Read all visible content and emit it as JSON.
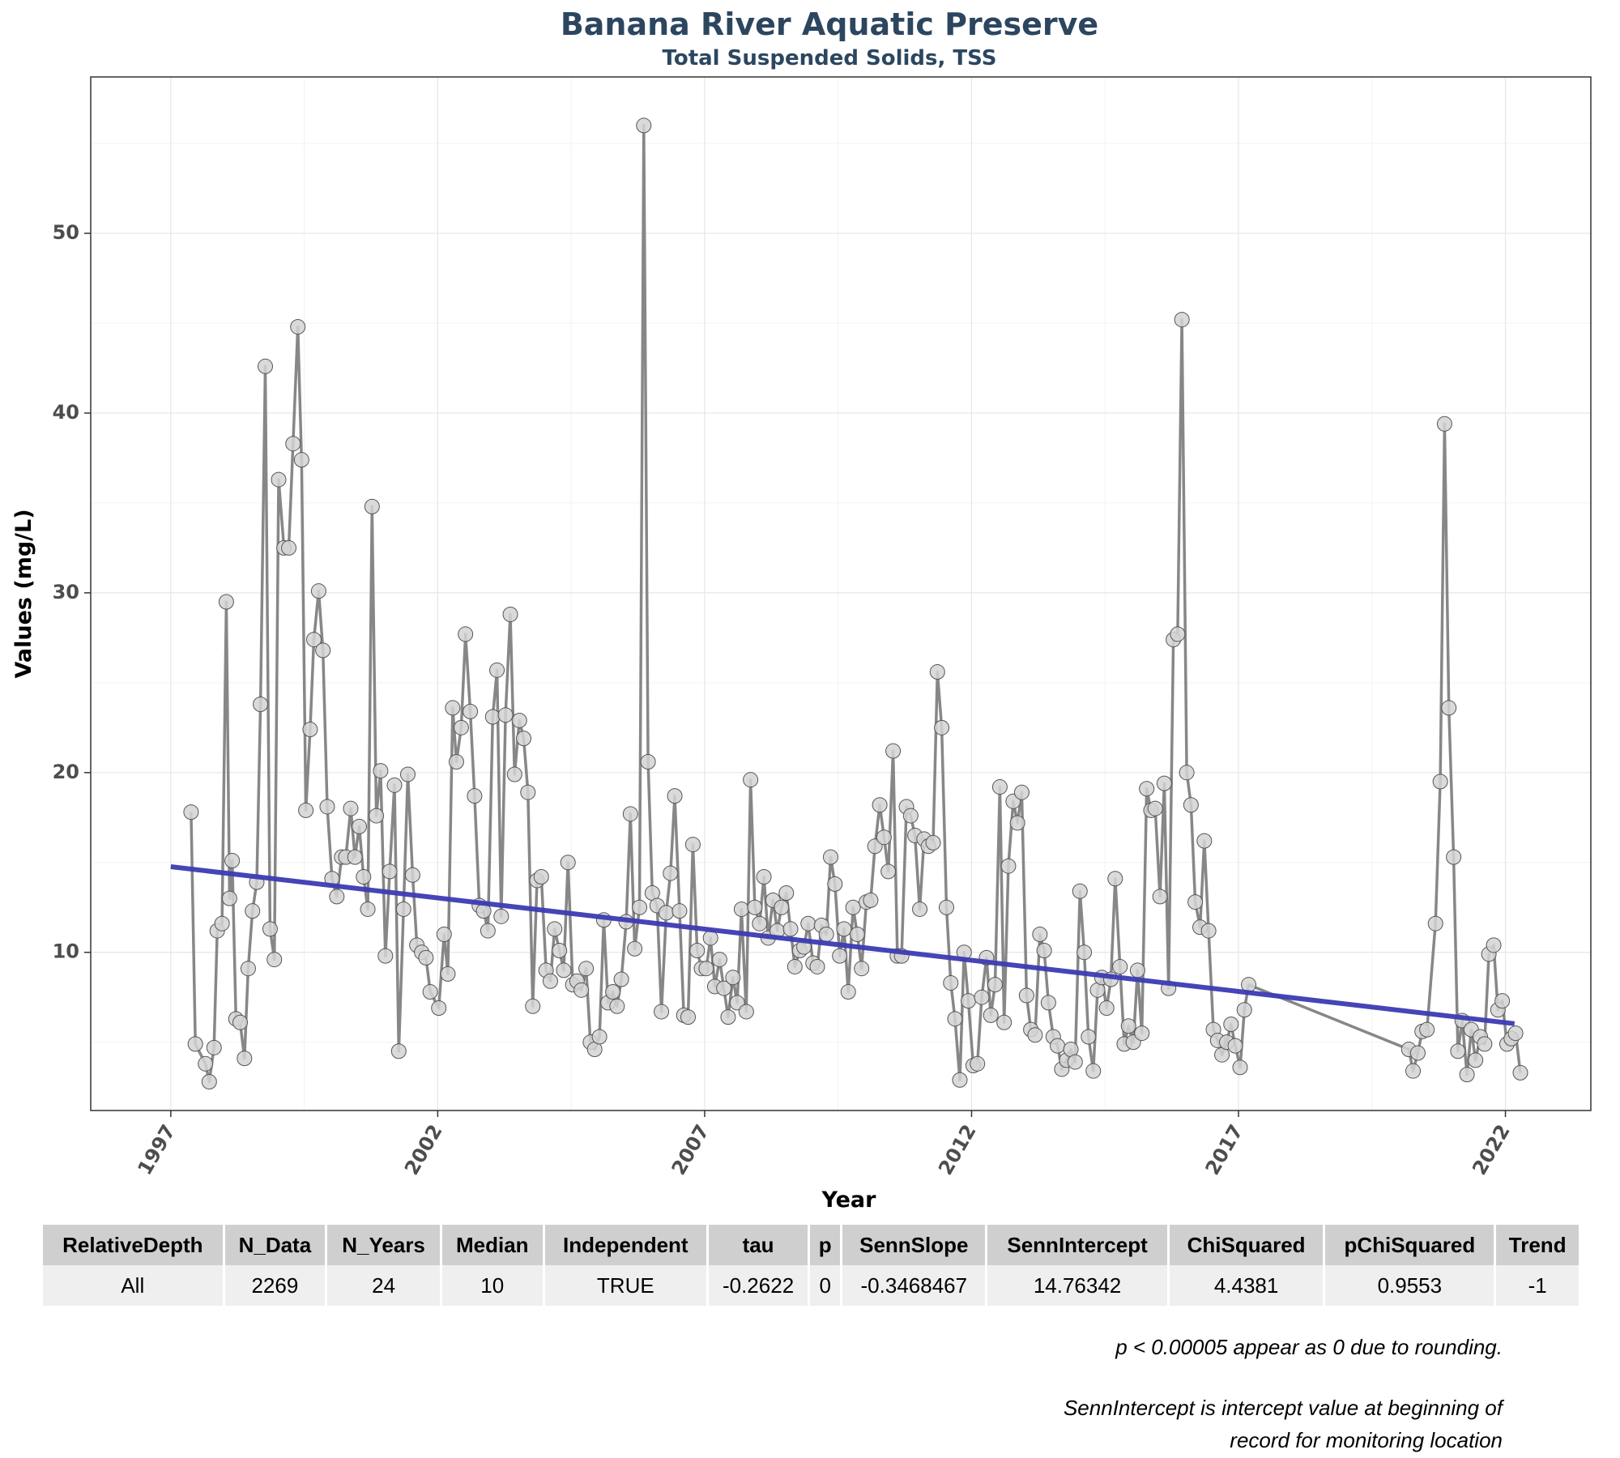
{
  "chart_data": {
    "type": "line",
    "title": "Banana River Aquatic Preserve",
    "subtitle": "Total Suspended Solids, TSS",
    "xlabel": "Year",
    "ylabel": "Values (mg/L)",
    "xlim": [
      1995.5,
      2023.6
    ],
    "ylim": [
      1.2,
      58.7
    ],
    "x_ticks": [
      1997,
      2002,
      2007,
      2012,
      2017,
      2022
    ],
    "y_ticks": [
      10,
      20,
      30,
      40,
      50
    ],
    "grid": true,
    "series": [
      {
        "points": [
          [
            1997.38,
            17.8
          ],
          [
            1997.46,
            4.9
          ],
          [
            1997.65,
            3.8
          ],
          [
            1997.72,
            2.8
          ],
          [
            1997.81,
            4.7
          ],
          [
            1997.87,
            11.2
          ],
          [
            1997.96,
            11.6
          ],
          [
            1998.04,
            29.5
          ],
          [
            1998.1,
            13.0
          ],
          [
            1998.15,
            15.1
          ],
          [
            1998.22,
            6.3
          ],
          [
            1998.3,
            6.1
          ],
          [
            1998.38,
            4.1
          ],
          [
            1998.45,
            9.1
          ],
          [
            1998.53,
            12.3
          ],
          [
            1998.61,
            13.9
          ],
          [
            1998.68,
            23.8
          ],
          [
            1998.77,
            42.6
          ],
          [
            1998.86,
            11.3
          ],
          [
            1998.94,
            9.6
          ],
          [
            1999.02,
            36.3
          ],
          [
            1999.12,
            32.5
          ],
          [
            1999.21,
            32.5
          ],
          [
            1999.29,
            38.3
          ],
          [
            1999.38,
            44.8
          ],
          [
            1999.45,
            37.4
          ],
          [
            1999.53,
            17.9
          ],
          [
            1999.61,
            22.4
          ],
          [
            1999.68,
            27.4
          ],
          [
            1999.77,
            30.1
          ],
          [
            1999.85,
            26.8
          ],
          [
            1999.93,
            18.1
          ],
          [
            2000.02,
            14.1
          ],
          [
            2000.11,
            13.1
          ],
          [
            2000.2,
            15.3
          ],
          [
            2000.28,
            15.3
          ],
          [
            2000.37,
            18.0
          ],
          [
            2000.45,
            15.3
          ],
          [
            2000.53,
            17.0
          ],
          [
            2000.61,
            14.2
          ],
          [
            2000.69,
            12.4
          ],
          [
            2000.77,
            34.8
          ],
          [
            2000.85,
            17.6
          ],
          [
            2000.93,
            20.1
          ],
          [
            2001.02,
            9.8
          ],
          [
            2001.1,
            14.5
          ],
          [
            2001.19,
            19.3
          ],
          [
            2001.27,
            4.5
          ],
          [
            2001.36,
            12.4
          ],
          [
            2001.44,
            19.9
          ],
          [
            2001.53,
            14.3
          ],
          [
            2001.61,
            10.4
          ],
          [
            2001.7,
            10.0
          ],
          [
            2001.78,
            9.7
          ],
          [
            2001.86,
            7.8
          ],
          [
            2002.02,
            6.9
          ],
          [
            2002.12,
            11.0
          ],
          [
            2002.19,
            8.8
          ],
          [
            2002.28,
            23.6
          ],
          [
            2002.35,
            20.6
          ],
          [
            2002.44,
            22.5
          ],
          [
            2002.52,
            27.7
          ],
          [
            2002.61,
            23.4
          ],
          [
            2002.69,
            18.7
          ],
          [
            2002.78,
            12.6
          ],
          [
            2002.86,
            12.3
          ],
          [
            2002.94,
            11.2
          ],
          [
            2003.03,
            23.1
          ],
          [
            2003.11,
            25.7
          ],
          [
            2003.19,
            12.0
          ],
          [
            2003.27,
            23.2
          ],
          [
            2003.36,
            28.8
          ],
          [
            2003.44,
            19.9
          ],
          [
            2003.53,
            22.9
          ],
          [
            2003.61,
            21.9
          ],
          [
            2003.69,
            18.9
          ],
          [
            2003.78,
            7.0
          ],
          [
            2003.86,
            14.0
          ],
          [
            2003.94,
            14.2
          ],
          [
            2004.03,
            9.0
          ],
          [
            2004.11,
            8.4
          ],
          [
            2004.19,
            11.3
          ],
          [
            2004.28,
            10.1
          ],
          [
            2004.36,
            9.0
          ],
          [
            2004.44,
            15.0
          ],
          [
            2004.53,
            8.2
          ],
          [
            2004.61,
            8.4
          ],
          [
            2004.69,
            7.9
          ],
          [
            2004.78,
            9.1
          ],
          [
            2004.86,
            5.0
          ],
          [
            2004.94,
            4.6
          ],
          [
            2005.03,
            5.3
          ],
          [
            2005.11,
            11.8
          ],
          [
            2005.19,
            7.2
          ],
          [
            2005.28,
            7.8
          ],
          [
            2005.36,
            7.0
          ],
          [
            2005.44,
            8.5
          ],
          [
            2005.53,
            11.7
          ],
          [
            2005.61,
            17.7
          ],
          [
            2005.69,
            10.2
          ],
          [
            2005.78,
            12.5
          ],
          [
            2005.86,
            56.0
          ],
          [
            2005.94,
            20.6
          ],
          [
            2006.02,
            13.3
          ],
          [
            2006.11,
            12.6
          ],
          [
            2006.19,
            6.7
          ],
          [
            2006.28,
            12.2
          ],
          [
            2006.36,
            14.4
          ],
          [
            2006.44,
            18.7
          ],
          [
            2006.53,
            12.3
          ],
          [
            2006.61,
            6.5
          ],
          [
            2006.69,
            6.4
          ],
          [
            2006.78,
            16.0
          ],
          [
            2006.86,
            10.1
          ],
          [
            2006.94,
            9.1
          ],
          [
            2007.03,
            9.1
          ],
          [
            2007.11,
            10.8
          ],
          [
            2007.19,
            8.1
          ],
          [
            2007.28,
            9.6
          ],
          [
            2007.36,
            8.0
          ],
          [
            2007.44,
            6.4
          ],
          [
            2007.53,
            8.6
          ],
          [
            2007.61,
            7.2
          ],
          [
            2007.69,
            12.4
          ],
          [
            2007.78,
            6.7
          ],
          [
            2007.86,
            19.6
          ],
          [
            2007.94,
            12.5
          ],
          [
            2008.03,
            11.6
          ],
          [
            2008.11,
            14.2
          ],
          [
            2008.19,
            10.8
          ],
          [
            2008.28,
            12.9
          ],
          [
            2008.36,
            11.2
          ],
          [
            2008.44,
            12.5
          ],
          [
            2008.53,
            13.3
          ],
          [
            2008.61,
            11.3
          ],
          [
            2008.69,
            9.2
          ],
          [
            2008.78,
            10.1
          ],
          [
            2008.86,
            10.3
          ],
          [
            2008.94,
            11.6
          ],
          [
            2009.03,
            9.4
          ],
          [
            2009.11,
            9.2
          ],
          [
            2009.19,
            11.5
          ],
          [
            2009.28,
            11.0
          ],
          [
            2009.36,
            15.3
          ],
          [
            2009.44,
            13.8
          ],
          [
            2009.53,
            9.8
          ],
          [
            2009.61,
            11.3
          ],
          [
            2009.69,
            7.8
          ],
          [
            2009.78,
            12.5
          ],
          [
            2009.86,
            11.0
          ],
          [
            2009.94,
            9.1
          ],
          [
            2010.03,
            12.8
          ],
          [
            2010.11,
            12.9
          ],
          [
            2010.19,
            15.9
          ],
          [
            2010.28,
            18.2
          ],
          [
            2010.36,
            16.4
          ],
          [
            2010.44,
            14.5
          ],
          [
            2010.53,
            21.2
          ],
          [
            2010.61,
            9.8
          ],
          [
            2010.69,
            9.8
          ],
          [
            2010.78,
            18.1
          ],
          [
            2010.86,
            17.6
          ],
          [
            2010.94,
            16.5
          ],
          [
            2011.03,
            12.4
          ],
          [
            2011.11,
            16.3
          ],
          [
            2011.19,
            15.9
          ],
          [
            2011.28,
            16.1
          ],
          [
            2011.36,
            25.6
          ],
          [
            2011.44,
            22.5
          ],
          [
            2011.53,
            12.5
          ],
          [
            2011.61,
            8.3
          ],
          [
            2011.69,
            6.3
          ],
          [
            2011.78,
            2.9
          ],
          [
            2011.86,
            10.0
          ],
          [
            2011.94,
            7.3
          ],
          [
            2012.03,
            3.7
          ],
          [
            2012.11,
            3.8
          ],
          [
            2012.19,
            7.5
          ],
          [
            2012.28,
            9.7
          ],
          [
            2012.36,
            6.5
          ],
          [
            2012.44,
            8.2
          ],
          [
            2012.53,
            19.2
          ],
          [
            2012.61,
            6.1
          ],
          [
            2012.69,
            14.8
          ],
          [
            2012.78,
            18.4
          ],
          [
            2012.86,
            17.2
          ],
          [
            2012.94,
            18.9
          ],
          [
            2013.03,
            7.6
          ],
          [
            2013.11,
            5.7
          ],
          [
            2013.19,
            5.4
          ],
          [
            2013.28,
            11.0
          ],
          [
            2013.36,
            10.1
          ],
          [
            2013.44,
            7.2
          ],
          [
            2013.53,
            5.3
          ],
          [
            2013.61,
            4.8
          ],
          [
            2013.69,
            3.5
          ],
          [
            2013.78,
            4.0
          ],
          [
            2013.86,
            4.6
          ],
          [
            2013.94,
            3.9
          ],
          [
            2014.03,
            13.4
          ],
          [
            2014.11,
            10.0
          ],
          [
            2014.19,
            5.3
          ],
          [
            2014.28,
            3.4
          ],
          [
            2014.36,
            7.9
          ],
          [
            2014.44,
            8.6
          ],
          [
            2014.53,
            6.9
          ],
          [
            2014.61,
            8.5
          ],
          [
            2014.69,
            14.1
          ],
          [
            2014.78,
            9.2
          ],
          [
            2014.86,
            4.9
          ],
          [
            2014.94,
            5.9
          ],
          [
            2015.03,
            5.0
          ],
          [
            2015.11,
            9.0
          ],
          [
            2015.19,
            5.5
          ],
          [
            2015.28,
            19.1
          ],
          [
            2015.36,
            17.9
          ],
          [
            2015.44,
            18.0
          ],
          [
            2015.53,
            13.1
          ],
          [
            2015.61,
            19.4
          ],
          [
            2015.69,
            8.0
          ],
          [
            2015.78,
            27.4
          ],
          [
            2015.86,
            27.7
          ],
          [
            2015.94,
            45.2
          ],
          [
            2016.03,
            20.0
          ],
          [
            2016.11,
            18.2
          ],
          [
            2016.19,
            12.8
          ],
          [
            2016.28,
            11.4
          ],
          [
            2016.36,
            16.2
          ],
          [
            2016.44,
            11.2
          ],
          [
            2016.53,
            5.7
          ],
          [
            2016.61,
            5.1
          ],
          [
            2016.69,
            4.3
          ],
          [
            2016.78,
            5.0
          ],
          [
            2016.86,
            6.0
          ],
          [
            2016.94,
            4.8
          ],
          [
            2017.03,
            3.6
          ],
          [
            2017.11,
            6.8
          ],
          [
            2017.19,
            8.2
          ],
          [
            2020.19,
            4.6
          ],
          [
            2020.27,
            3.4
          ],
          [
            2020.36,
            4.4
          ],
          [
            2020.44,
            5.6
          ],
          [
            2020.53,
            5.7
          ],
          [
            2020.69,
            11.6
          ],
          [
            2020.78,
            19.5
          ],
          [
            2020.86,
            39.4
          ],
          [
            2020.94,
            23.6
          ],
          [
            2021.03,
            15.3
          ],
          [
            2021.11,
            4.5
          ],
          [
            2021.19,
            6.2
          ],
          [
            2021.28,
            3.2
          ],
          [
            2021.36,
            5.7
          ],
          [
            2021.44,
            4.0
          ],
          [
            2021.53,
            5.3
          ],
          [
            2021.61,
            4.9
          ],
          [
            2021.69,
            9.9
          ],
          [
            2021.78,
            10.4
          ],
          [
            2021.86,
            6.8
          ],
          [
            2021.94,
            7.3
          ],
          [
            2022.03,
            4.9
          ],
          [
            2022.11,
            5.2
          ],
          [
            2022.19,
            5.5
          ],
          [
            2022.28,
            3.3
          ]
        ]
      }
    ],
    "trend_line": {
      "x": [
        1997.0,
        2022.17
      ],
      "y": [
        14.76342,
        6.03
      ]
    },
    "colors": {
      "line": "#878787",
      "point_fill": "#d3d3d3",
      "point_stroke": "#555555",
      "trend": "#3b3bb3",
      "title": "#2c4660"
    }
  },
  "table": {
    "headers": [
      "RelativeDepth",
      "N_Data",
      "N_Years",
      "Median",
      "Independent",
      "tau",
      "p",
      "SennSlope",
      "SennIntercept",
      "ChiSquared",
      "pChiSquared",
      "Trend"
    ],
    "rows": [
      [
        "All",
        "2269",
        "24",
        "10",
        "TRUE",
        "-0.2622",
        "0",
        "-0.3468467",
        "14.76342",
        "4.4381",
        "0.9553",
        "-1"
      ]
    ]
  },
  "notes": {
    "rounding": "p < 0.00005 appear as 0 due to rounding.",
    "intercept_line1": "SennIntercept is intercept value at beginning of",
    "intercept_line2": "record for monitoring location"
  }
}
